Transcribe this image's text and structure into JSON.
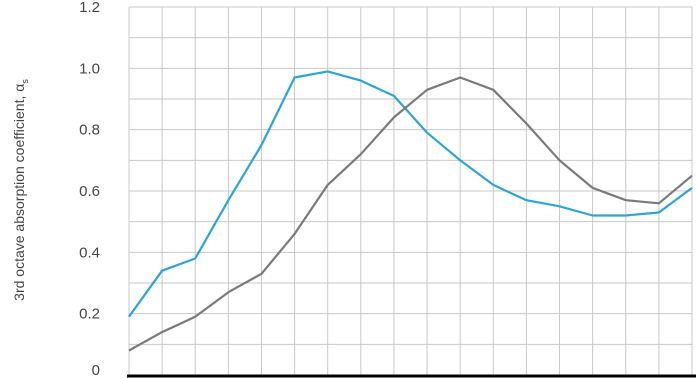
{
  "chart_data": {
    "type": "line",
    "ylabel": "3rd octave absorption coefficient, α",
    "ylabel_subscript": "s",
    "ylim": [
      0,
      1.2
    ],
    "yticks": [
      "0",
      "0.2",
      "0.4",
      "0.6",
      "0.8",
      "1.0",
      "1.2"
    ],
    "x_count": 18,
    "grid": true,
    "series": [
      {
        "color": "#2fa3d6",
        "values": [
          0.19,
          0.34,
          0.38,
          0.57,
          0.75,
          0.97,
          0.99,
          0.96,
          0.91,
          0.79,
          0.7,
          0.62,
          0.57,
          0.55,
          0.52,
          0.52,
          0.53,
          0.61
        ]
      },
      {
        "color": "#7a7a7a",
        "values": [
          0.08,
          0.14,
          0.19,
          0.27,
          0.33,
          0.46,
          0.62,
          0.72,
          0.84,
          0.93,
          0.97,
          0.93,
          0.82,
          0.7,
          0.61,
          0.57,
          0.56,
          0.65
        ]
      }
    ]
  }
}
